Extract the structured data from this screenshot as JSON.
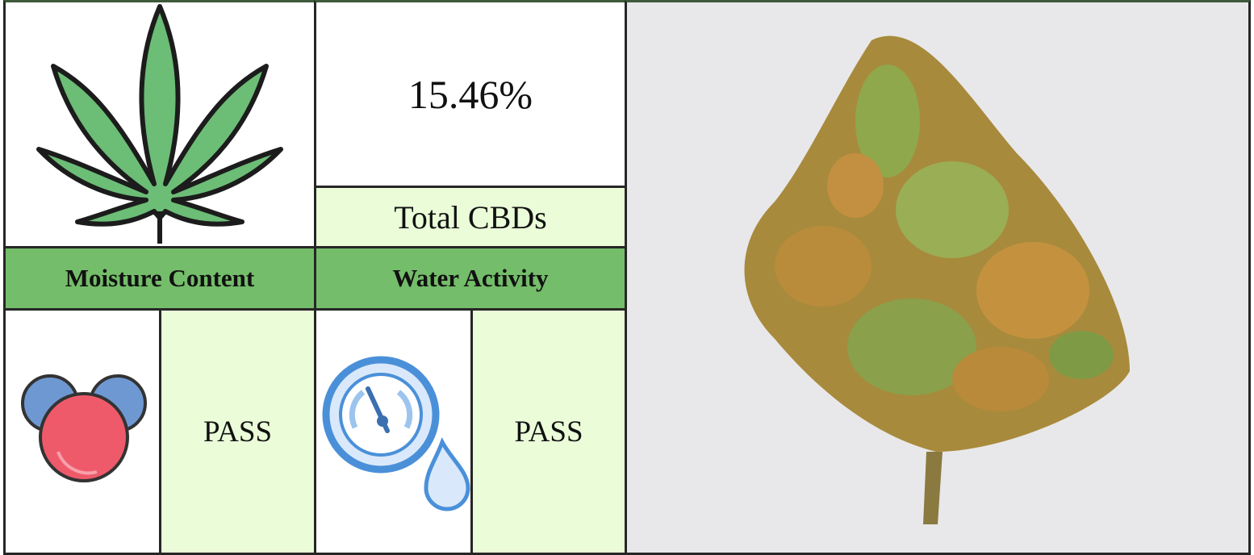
{
  "summary": {
    "value": "15.46%",
    "label": "Total CBDs"
  },
  "tests": [
    {
      "name": "Moisture Content",
      "result": "PASS"
    },
    {
      "name": "Water Activity",
      "result": "PASS"
    }
  ]
}
